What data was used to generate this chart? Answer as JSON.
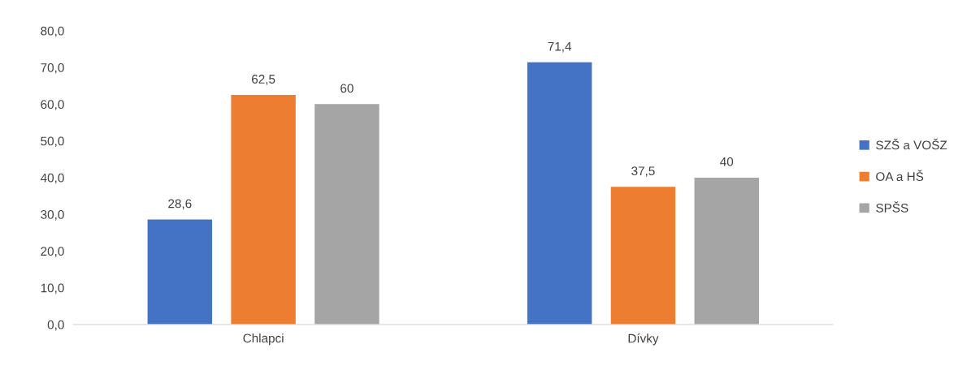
{
  "chart_data": {
    "type": "bar",
    "categories": [
      "Chlapci",
      "Dívky"
    ],
    "series": [
      {
        "name": "SZŠ a VOŠZ",
        "color": "#4472c4",
        "values": [
          28.6,
          71.4
        ],
        "value_labels": [
          "28,6",
          "71,4"
        ]
      },
      {
        "name": "OA a HŠ",
        "color": "#ed7d31",
        "values": [
          62.5,
          37.5
        ],
        "value_labels": [
          "62,5",
          "37,5"
        ]
      },
      {
        "name": "SPŠS",
        "color": "#a5a5a5",
        "values": [
          60,
          40
        ],
        "value_labels": [
          "60",
          "40"
        ]
      }
    ],
    "ylim": [
      0,
      80
    ],
    "yticks": [
      {
        "value": 0,
        "label": "0,0"
      },
      {
        "value": 10,
        "label": "10,0"
      },
      {
        "value": 20,
        "label": "20,0"
      },
      {
        "value": 30,
        "label": "30,0"
      },
      {
        "value": 40,
        "label": "40,0"
      },
      {
        "value": 50,
        "label": "50,0"
      },
      {
        "value": 60,
        "label": "60,0"
      },
      {
        "value": 70,
        "label": "70,0"
      },
      {
        "value": 80,
        "label": "80,0"
      }
    ],
    "grid": false,
    "legend": "right"
  }
}
